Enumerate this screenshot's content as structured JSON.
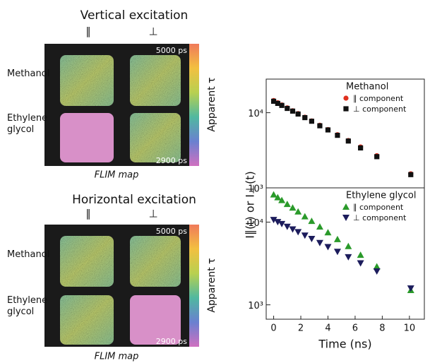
{
  "flim_panels": [
    {
      "title": "Vertical excitation",
      "columns": [
        "∥",
        "⊥"
      ],
      "rows": [
        "Methanol",
        "Ethylene glycol"
      ],
      "scale_max": "5000 ps",
      "scale_min": "2900 ps",
      "scale_label": "Apparent τ",
      "caption": "FLIM map"
    },
    {
      "title": "Horizontal excitation",
      "columns": [
        "∥",
        "⊥"
      ],
      "rows": [
        "Methanol",
        "Ethylene glycol"
      ],
      "scale_max": "5000 ps",
      "scale_min": "2900 ps",
      "scale_label": "Apparent τ",
      "caption": "FLIM map"
    }
  ],
  "chart_data": [
    {
      "type": "scatter",
      "yscale": "log",
      "ylabel": "I∥(t) or I⊥(t)",
      "legend_title": "Methanol",
      "legend": "upper right",
      "x": [
        0,
        0.3,
        0.6,
        1.0,
        1.4,
        1.8,
        2.3,
        2.8,
        3.4,
        4.0,
        4.7,
        5.5,
        6.4,
        7.6,
        10.1
      ],
      "xlim": [
        -0.55,
        11.1
      ],
      "ylim": [
        1000,
        28000
      ],
      "yticks": [
        {
          "value": 1000,
          "label": "10³"
        },
        {
          "value": 10000,
          "label": "10⁴"
        }
      ],
      "series": [
        {
          "name": "∥ component",
          "color": "#e0301e",
          "marker": "circle",
          "values": [
            14500,
            13560,
            12690,
            11610,
            10620,
            9720,
            8700,
            7780,
            6810,
            5960,
            5100,
            4270,
            3500,
            2680,
            1540
          ]
        },
        {
          "name": "⊥ component",
          "color": "#111111",
          "marker": "square",
          "values": [
            14200,
            13300,
            12500,
            11400,
            10500,
            9600,
            8600,
            7700,
            6700,
            5900,
            5000,
            4200,
            3400,
            2600,
            1500
          ]
        }
      ]
    },
    {
      "type": "scatter",
      "yscale": "log",
      "xlabel": "Time (ns)",
      "legend_title": "Ethylene glycol",
      "legend": "upper right",
      "x": [
        0,
        0.3,
        0.6,
        1.0,
        1.4,
        1.8,
        2.3,
        2.8,
        3.4,
        4.0,
        4.7,
        5.5,
        6.4,
        7.6,
        10.1
      ],
      "xlim": [
        -0.55,
        11.1
      ],
      "xticks": [
        0,
        2,
        4,
        6,
        8,
        10
      ],
      "ylim": [
        670,
        26000
      ],
      "yticks": [
        {
          "value": 1000,
          "label": "10³"
        },
        {
          "value": 10000,
          "label": "10⁴"
        }
      ],
      "series": [
        {
          "name": "∥ component",
          "color": "#2a9a2a",
          "marker": "triangle-up",
          "values": [
            21500,
            19900,
            18400,
            16500,
            14900,
            13400,
            11700,
            10300,
            8800,
            7500,
            6200,
            5100,
            4000,
            2900,
            1500
          ]
        },
        {
          "name": "⊥ component",
          "color": "#1c1c5c",
          "marker": "triangle-down",
          "values": [
            10700,
            10100,
            9550,
            8860,
            8220,
            7620,
            6930,
            6310,
            5640,
            5030,
            4410,
            3790,
            3200,
            2550,
            1590
          ]
        }
      ]
    }
  ]
}
